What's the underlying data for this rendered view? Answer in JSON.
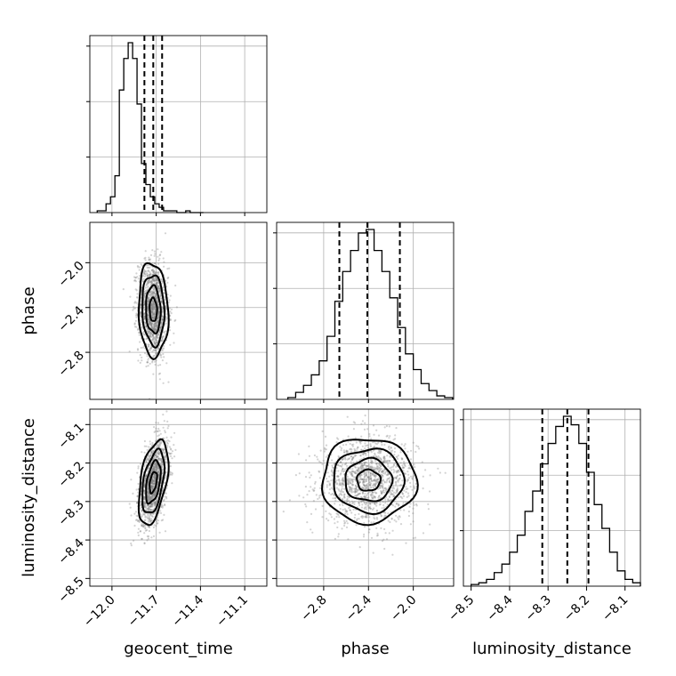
{
  "chart_data": {
    "type": "corner",
    "parameters": [
      "geocent_time",
      "phase",
      "luminosity_distance"
    ],
    "axis_labels": {
      "bottom": [
        "geocent_time",
        "phase",
        "luminosity_distance"
      ],
      "left": [
        "",
        "phase",
        "luminosity_distance"
      ]
    },
    "grid": true,
    "ranges": {
      "geocent_time": [
        -12.15,
        -10.95
      ],
      "phase": [
        -3.22,
        -1.64
      ],
      "luminosity_distance": [
        -8.52,
        -8.06
      ]
    },
    "ticks": {
      "geocent_time": [
        {
          "v": -12.0,
          "label": "−12.0"
        },
        {
          "v": -11.7,
          "label": "−11.7"
        },
        {
          "v": -11.4,
          "label": "−11.4"
        },
        {
          "v": -11.1,
          "label": "−11.1"
        }
      ],
      "phase": [
        {
          "v": -2.8,
          "label": "−2.8"
        },
        {
          "v": -2.4,
          "label": "−2.4"
        },
        {
          "v": -2.0,
          "label": "−2.0"
        }
      ],
      "luminosity_distance": [
        {
          "v": -8.5,
          "label": "−8.5"
        },
        {
          "v": -8.4,
          "label": "−8.4"
        },
        {
          "v": -8.3,
          "label": "−8.3"
        },
        {
          "v": -8.2,
          "label": "−8.2"
        },
        {
          "v": -8.1,
          "label": "−8.1"
        }
      ]
    },
    "quantiles": {
      "geocent_time": [
        -11.78,
        -11.72,
        -11.66
      ],
      "phase": [
        -2.66,
        -2.41,
        -2.12
      ],
      "luminosity_distance": [
        -8.315,
        -8.25,
        -8.195
      ]
    },
    "histograms": {
      "geocent_time": {
        "edges": [
          -12.1,
          -12.07,
          -12.04,
          -12.01,
          -11.98,
          -11.95,
          -11.92,
          -11.89,
          -11.86,
          -11.83,
          -11.8,
          -11.77,
          -11.74,
          -11.71,
          -11.68,
          -11.65,
          -11.62,
          -11.59,
          -11.56,
          -11.53,
          -11.5,
          -11.47,
          -11.44,
          -11.41,
          -11.38
        ],
        "counts": [
          1,
          1,
          5,
          9,
          21,
          70,
          88,
          97,
          88,
          62,
          28,
          16,
          9,
          5,
          3,
          1,
          1,
          1,
          0,
          0,
          1,
          0,
          0,
          0
        ]
      },
      "phase": {
        "edges": [
          -3.12,
          -3.05,
          -2.98,
          -2.91,
          -2.84,
          -2.77,
          -2.7,
          -2.63,
          -2.56,
          -2.49,
          -2.42,
          -2.35,
          -2.28,
          -2.21,
          -2.14,
          -2.07,
          -2.0,
          -1.93,
          -1.86,
          -1.79,
          -1.72,
          -1.65
        ],
        "counts": [
          1,
          4,
          8,
          14,
          22,
          36,
          56,
          73,
          85,
          95,
          97,
          85,
          73,
          58,
          41,
          26,
          17,
          9,
          5,
          2,
          1
        ]
      },
      "luminosity_distance": {
        "edges": [
          -8.5,
          -8.48,
          -8.46,
          -8.44,
          -8.42,
          -8.4,
          -8.38,
          -8.36,
          -8.34,
          -8.32,
          -8.3,
          -8.28,
          -8.26,
          -8.24,
          -8.22,
          -8.2,
          -8.18,
          -8.16,
          -8.14,
          -8.12,
          -8.1,
          -8.08,
          -8.06
        ],
        "counts": [
          1,
          2,
          4,
          8,
          13,
          20,
          30,
          44,
          56,
          72,
          84,
          94,
          100,
          95,
          84,
          67,
          48,
          34,
          20,
          9,
          4,
          2
        ]
      }
    },
    "joint": [
      {
        "x": "geocent_time",
        "y": "phase",
        "center": [
          -11.72,
          -2.42
        ],
        "sigma": [
          0.05,
          0.21
        ],
        "rho": -0.1,
        "samples": 1500,
        "contour_levels": [
          0.5,
          1.0,
          1.5,
          2.0
        ]
      },
      {
        "x": "geocent_time",
        "y": "luminosity_distance",
        "center": [
          -11.72,
          -8.25
        ],
        "sigma": [
          0.05,
          0.055
        ],
        "rho": 0.45,
        "samples": 1500,
        "contour_levels": [
          0.5,
          1.0,
          1.5,
          2.0
        ]
      },
      {
        "x": "phase",
        "y": "luminosity_distance",
        "center": [
          -2.4,
          -8.245
        ],
        "sigma": [
          0.21,
          0.055
        ],
        "rho": 0.0,
        "samples": 1500,
        "contour_levels": [
          0.5,
          1.0,
          1.5,
          2.0
        ]
      }
    ]
  }
}
